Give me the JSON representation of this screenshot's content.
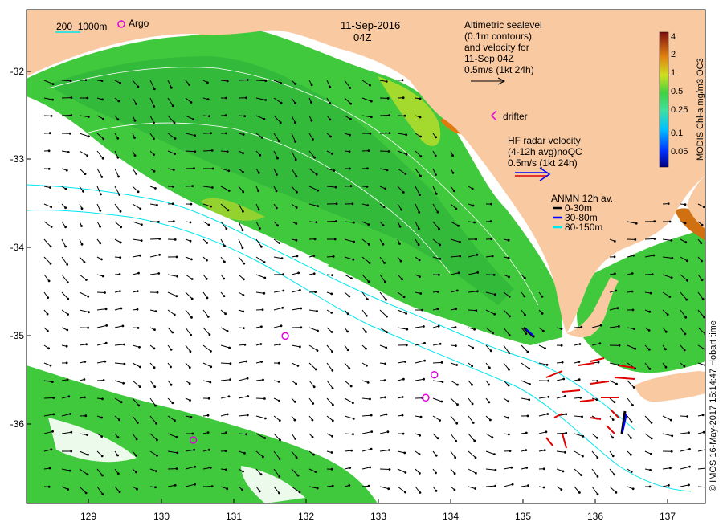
{
  "map": {
    "date": "11-Sep-2016",
    "time": "04Z",
    "scale_bar": {
      "label_a": "200",
      "label_b": "1000m"
    },
    "argo_label": "Argo",
    "altimetry_lines": [
      "Altimetric sealevel",
      "(0.1m contours)",
      "and velocity for",
      "11-Sep 04Z",
      "0.5m/s (1kt 24h)"
    ],
    "drifter_label": "drifter",
    "hf_radar_lines": [
      "HF radar velocity",
      "(4-12h avg)noQC",
      "0.5m/s (1kt 24h)"
    ],
    "anmn": {
      "title": "ANMN 12h av.",
      "entries": [
        {
          "label": "0-30m",
          "color": "#000000"
        },
        {
          "label": "30-80m",
          "color": "#0000ff"
        },
        {
          "label": "80-150m",
          "color": "#00e5ee"
        }
      ]
    },
    "colorbar": {
      "label": "MODIS Chl-a mg/m3 OC3",
      "ticks": [
        "4",
        "2",
        "1",
        "0.5",
        "0.25",
        "0.1",
        "0.05"
      ]
    },
    "credit": "© IMOS 16-May-2017 15:14:47 Hobart time",
    "y_ticks": [
      "-32",
      "-33",
      "-34",
      "-35",
      "-36"
    ],
    "x_ticks": [
      "129",
      "130",
      "131",
      "132",
      "133",
      "134",
      "135",
      "136",
      "137"
    ],
    "argo_floats": [
      {
        "lon": 131.72,
        "lat": -35.0
      },
      {
        "lon": 133.78,
        "lat": -35.44
      },
      {
        "lon": 133.66,
        "lat": -35.7
      },
      {
        "lon": 130.45,
        "lat": -36.18
      }
    ],
    "colors": {
      "land": "#f9c9a1",
      "chl_green": "#3fce3a",
      "chl_yellow": "#c8e02a",
      "chl_orange": "#e07a10",
      "isobath": "#00e5ee",
      "argo": "#e000e0",
      "hf": "#e00000"
    }
  }
}
